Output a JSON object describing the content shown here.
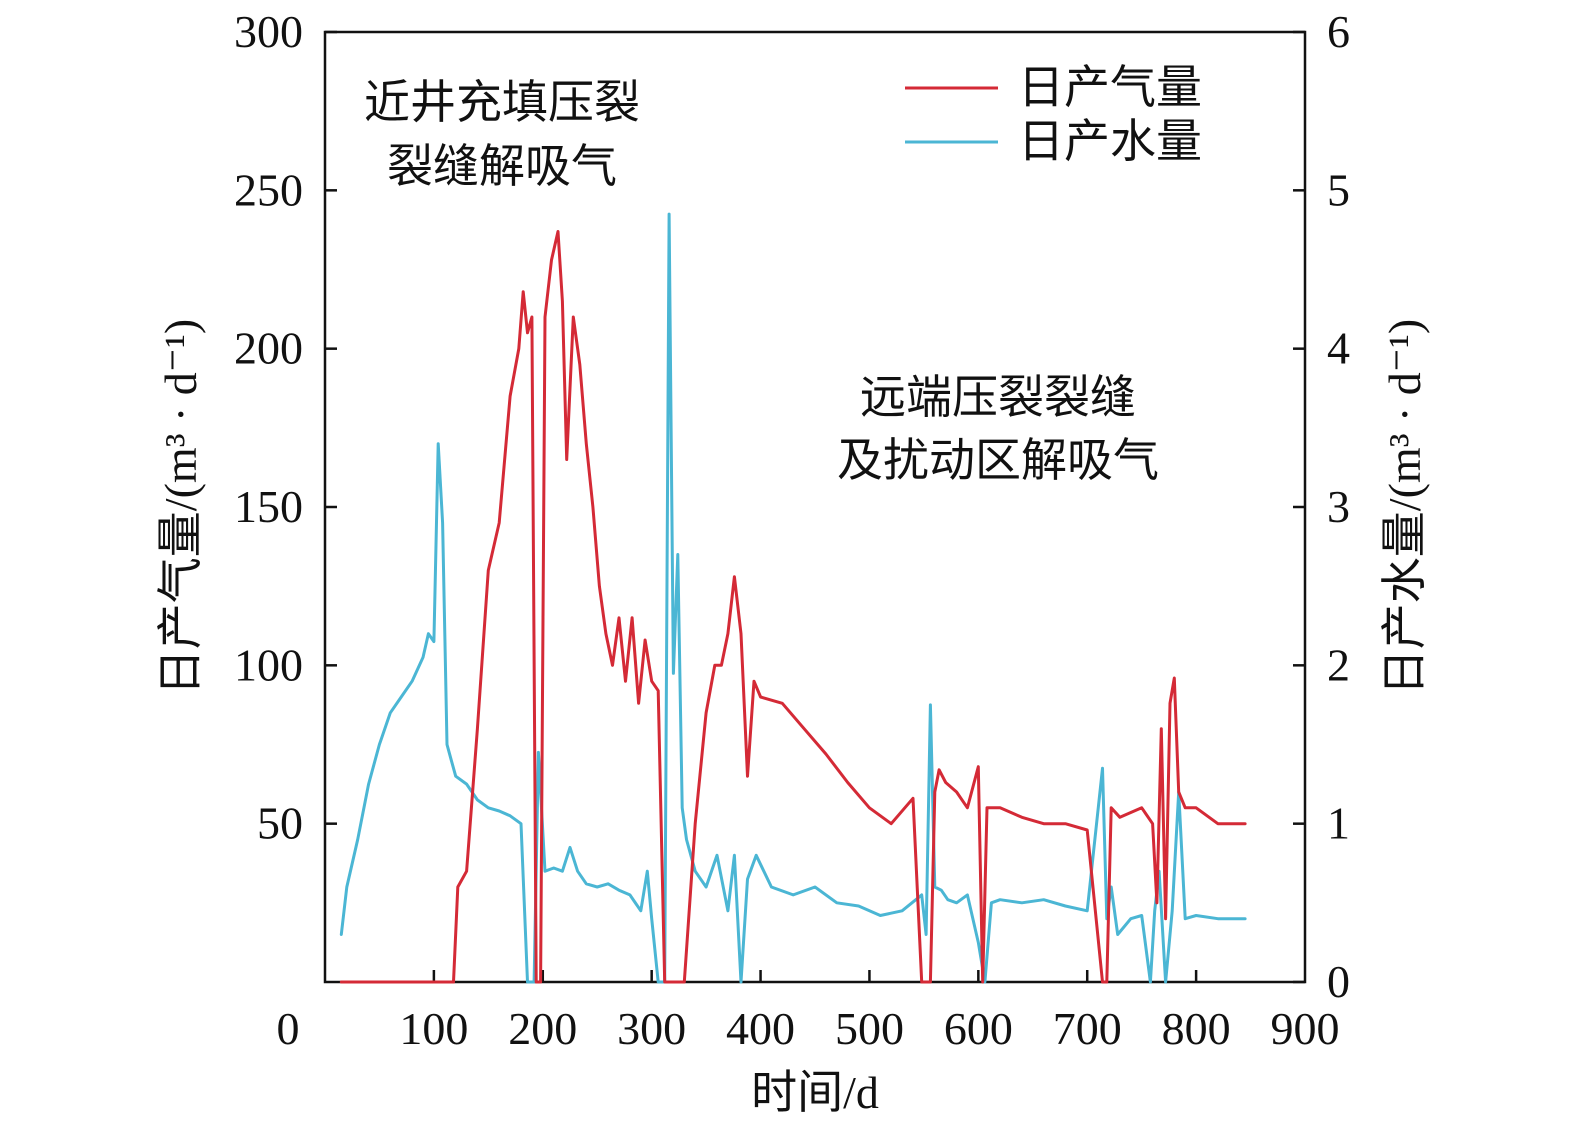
{
  "chart_data": {
    "type": "line",
    "xlabel": "时间/d",
    "ylabel_left": "日产气量/(m³ · d⁻¹)",
    "ylabel_right": "日产水量/(m³ · d⁻¹)",
    "xlim": [
      0,
      900
    ],
    "ylim_left": [
      0,
      300
    ],
    "ylim_right": [
      0,
      6
    ],
    "x_ticks": [
      0,
      100,
      200,
      300,
      400,
      500,
      600,
      700,
      800,
      900
    ],
    "y_ticks_left": [
      50,
      100,
      150,
      200,
      250,
      300
    ],
    "y_ticks_right": [
      0,
      1,
      2,
      3,
      4,
      5,
      6
    ],
    "grid": false,
    "legend_position": "top-right",
    "annotations": [
      {
        "lines": [
          "近井充填压裂",
          "裂缝解吸气"
        ]
      },
      {
        "lines": [
          "远端压裂裂缝",
          "及扰动区解吸气"
        ]
      }
    ],
    "series": [
      {
        "name": "日产气量",
        "axis": "left",
        "color": "#d42a36",
        "x": [
          15,
          50,
          90,
          110,
          118,
          122,
          130,
          140,
          150,
          160,
          170,
          178,
          182,
          186,
          190,
          194,
          198,
          202,
          208,
          214,
          218,
          222,
          228,
          234,
          240,
          246,
          252,
          258,
          264,
          270,
          276,
          282,
          288,
          294,
          300,
          306,
          312,
          318,
          322,
          326,
          330,
          340,
          350,
          358,
          364,
          370,
          376,
          382,
          388,
          394,
          400,
          420,
          440,
          460,
          480,
          500,
          520,
          540,
          548,
          552,
          556,
          560,
          564,
          570,
          580,
          590,
          600,
          604,
          608,
          620,
          640,
          660,
          680,
          700,
          714,
          718,
          722,
          730,
          750,
          760,
          764,
          768,
          772,
          776,
          780,
          784,
          790,
          800,
          820,
          845
        ],
        "values": [
          0,
          0,
          0,
          0,
          0,
          30,
          35,
          80,
          130,
          145,
          185,
          200,
          218,
          205,
          210,
          0,
          0,
          210,
          228,
          237,
          215,
          165,
          210,
          195,
          170,
          150,
          125,
          110,
          100,
          115,
          95,
          115,
          88,
          108,
          95,
          92,
          0,
          0,
          0,
          0,
          0,
          50,
          85,
          100,
          100,
          110,
          128,
          110,
          65,
          95,
          90,
          88,
          80,
          72,
          63,
          55,
          50,
          58,
          0,
          0,
          0,
          60,
          67,
          63,
          60,
          55,
          68,
          0,
          55,
          55,
          52,
          50,
          50,
          48,
          0,
          0,
          55,
          52,
          55,
          50,
          25,
          80,
          20,
          88,
          96,
          60,
          55,
          55,
          50,
          50
        ]
      },
      {
        "name": "日产水量",
        "axis": "right",
        "color": "#4bb6d4",
        "x": [
          15,
          20,
          30,
          40,
          50,
          60,
          70,
          80,
          90,
          95,
          100,
          104,
          108,
          112,
          116,
          120,
          130,
          140,
          150,
          160,
          170,
          180,
          186,
          192,
          196,
          202,
          210,
          218,
          225,
          232,
          240,
          250,
          260,
          270,
          280,
          290,
          296,
          300,
          306,
          312,
          316,
          320,
          324,
          328,
          332,
          340,
          350,
          360,
          370,
          376,
          382,
          388,
          396,
          410,
          430,
          450,
          470,
          490,
          510,
          530,
          548,
          552,
          556,
          560,
          566,
          572,
          580,
          590,
          600,
          606,
          612,
          620,
          640,
          660,
          680,
          700,
          714,
          718,
          722,
          728,
          740,
          750,
          758,
          762,
          766,
          772,
          778,
          784,
          790,
          800,
          820,
          845
        ],
        "values": [
          0.3,
          0.6,
          0.9,
          1.25,
          1.5,
          1.7,
          1.8,
          1.9,
          2.05,
          2.2,
          2.15,
          3.4,
          2.9,
          1.5,
          1.4,
          1.3,
          1.25,
          1.15,
          1.1,
          1.08,
          1.05,
          1.0,
          0.0,
          0.0,
          1.45,
          0.7,
          0.72,
          0.7,
          0.85,
          0.7,
          0.62,
          0.6,
          0.62,
          0.58,
          0.55,
          0.45,
          0.7,
          0.4,
          0.0,
          0.0,
          4.85,
          1.95,
          2.7,
          1.1,
          0.9,
          0.7,
          0.6,
          0.8,
          0.45,
          0.8,
          0.0,
          0.65,
          0.8,
          0.6,
          0.55,
          0.6,
          0.5,
          0.48,
          0.42,
          0.45,
          0.55,
          0.3,
          1.75,
          0.6,
          0.58,
          0.52,
          0.5,
          0.55,
          0.25,
          0.0,
          0.5,
          0.52,
          0.5,
          0.52,
          0.48,
          0.45,
          1.35,
          0.4,
          0.6,
          0.3,
          0.4,
          0.42,
          0.0,
          0.45,
          0.7,
          0.0,
          0.45,
          1.2,
          0.4,
          0.42,
          0.4,
          0.4
        ]
      }
    ]
  }
}
